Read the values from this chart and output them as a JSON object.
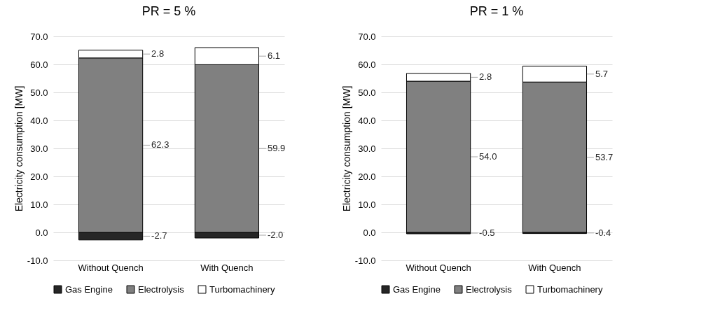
{
  "chart_data": [
    {
      "type": "bar",
      "title": "PR = 5 %",
      "ylabel": "Electricity consumption [MW]",
      "categories": [
        "Without Quench",
        "With Quench"
      ],
      "stacked": true,
      "series": [
        {
          "name": "Gas Engine",
          "color": "#262626",
          "values": [
            -2.7,
            -2.0
          ],
          "value_labels": [
            "-2.7",
            "-2.0"
          ]
        },
        {
          "name": "Electrolysis",
          "color": "#808080",
          "values": [
            62.3,
            59.9
          ],
          "value_labels": [
            "62.3",
            "59.9"
          ]
        },
        {
          "name": "Turbomachinery",
          "color": "#ffffff",
          "values": [
            2.8,
            6.1
          ],
          "value_labels": [
            "2.8",
            "6.1"
          ]
        }
      ],
      "ylim": [
        -10,
        70
      ],
      "yticks": [
        {
          "value": -10,
          "label": "-10.0"
        },
        {
          "value": 0,
          "label": "0.0"
        },
        {
          "value": 10,
          "label": "10.0"
        },
        {
          "value": 20,
          "label": "20.0"
        },
        {
          "value": 30,
          "label": "30.0"
        },
        {
          "value": 40,
          "label": "40.0"
        },
        {
          "value": 50,
          "label": "50.0"
        },
        {
          "value": 60,
          "label": "60.0"
        },
        {
          "value": 70,
          "label": "70.0"
        }
      ],
      "grid": "y",
      "legend": "bottom"
    },
    {
      "type": "bar",
      "title": "PR = 1 %",
      "ylabel": "Electricity consumption [MW]",
      "categories": [
        "Without Quench",
        "With Quench"
      ],
      "stacked": true,
      "series": [
        {
          "name": "Gas Engine",
          "color": "#262626",
          "values": [
            -0.5,
            -0.4
          ],
          "value_labels": [
            "-0.5",
            "-0.4"
          ]
        },
        {
          "name": "Electrolysis",
          "color": "#808080",
          "values": [
            54.0,
            53.7
          ],
          "value_labels": [
            "54.0",
            "53.7"
          ]
        },
        {
          "name": "Turbomachinery",
          "color": "#ffffff",
          "values": [
            2.8,
            5.7
          ],
          "value_labels": [
            "2.8",
            "5.7"
          ]
        }
      ],
      "ylim": [
        -10,
        70
      ],
      "yticks": [
        {
          "value": -10,
          "label": "-10.0"
        },
        {
          "value": 0,
          "label": "0.0"
        },
        {
          "value": 10,
          "label": "10.0"
        },
        {
          "value": 20,
          "label": "20.0"
        },
        {
          "value": 30,
          "label": "30.0"
        },
        {
          "value": 40,
          "label": "40.0"
        },
        {
          "value": 50,
          "label": "50.0"
        },
        {
          "value": 60,
          "label": "60.0"
        },
        {
          "value": 70,
          "label": "70.0"
        }
      ],
      "grid": "y",
      "legend": "bottom"
    }
  ]
}
